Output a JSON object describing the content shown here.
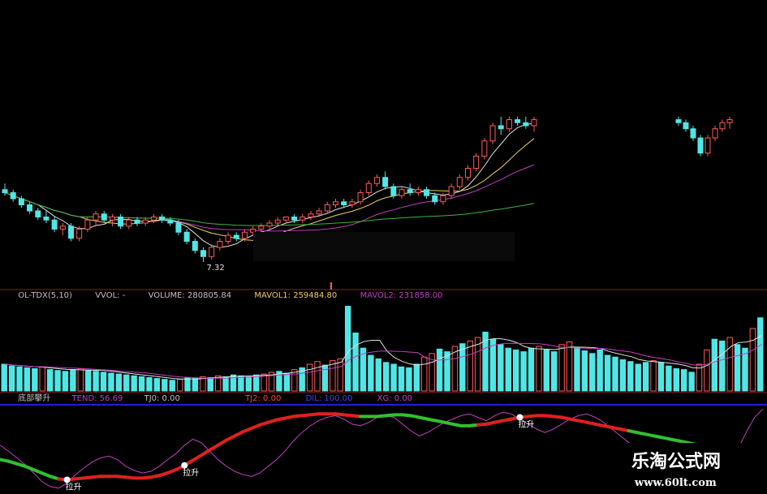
{
  "colors": {
    "background": "#000000",
    "up": "#ff5a5a",
    "down": "#50e6e6",
    "ma_white": "#e0e0e0",
    "ma_yellow": "#e6d25a",
    "ma_purple": "#c040c0",
    "ma_green": "#3cb43c",
    "divider": "#8c1e1e",
    "blue_line": "#2020d0",
    "rise": "#e02020",
    "fall": "#30c030",
    "label_gray": "#c0c0c0",
    "label_purple": "#c040c0",
    "label_red": "#ff4040",
    "label_blue": "#4040ff"
  },
  "chart_data": {
    "type": "candlestick",
    "price": {
      "min_label": "7.32",
      "ylim": [
        7.0,
        12.2
      ],
      "candles": [
        {
          "o": 9.7,
          "h": 9.9,
          "l": 9.5,
          "c": 9.6
        },
        {
          "o": 9.6,
          "h": 9.7,
          "l": 9.3,
          "c": 9.4
        },
        {
          "o": 9.4,
          "h": 9.5,
          "l": 9.1,
          "c": 9.2
        },
        {
          "o": 9.2,
          "h": 9.3,
          "l": 8.9,
          "c": 9.0
        },
        {
          "o": 9.0,
          "h": 9.1,
          "l": 8.7,
          "c": 8.8
        },
        {
          "o": 8.8,
          "h": 9.0,
          "l": 8.6,
          "c": 8.7
        },
        {
          "o": 8.7,
          "h": 8.8,
          "l": 8.3,
          "c": 8.4
        },
        {
          "o": 8.4,
          "h": 8.6,
          "l": 8.2,
          "c": 8.5
        },
        {
          "o": 8.5,
          "h": 8.6,
          "l": 8.0,
          "c": 8.1
        },
        {
          "o": 8.1,
          "h": 8.5,
          "l": 8.0,
          "c": 8.4
        },
        {
          "o": 8.4,
          "h": 8.8,
          "l": 8.3,
          "c": 8.7
        },
        {
          "o": 8.7,
          "h": 9.0,
          "l": 8.5,
          "c": 8.9
        },
        {
          "o": 8.9,
          "h": 9.0,
          "l": 8.6,
          "c": 8.7
        },
        {
          "o": 8.7,
          "h": 8.9,
          "l": 8.5,
          "c": 8.8
        },
        {
          "o": 8.8,
          "h": 8.9,
          "l": 8.4,
          "c": 8.5
        },
        {
          "o": 8.5,
          "h": 8.8,
          "l": 8.4,
          "c": 8.7
        },
        {
          "o": 8.7,
          "h": 8.8,
          "l": 8.5,
          "c": 8.6
        },
        {
          "o": 8.6,
          "h": 8.8,
          "l": 8.5,
          "c": 8.7
        },
        {
          "o": 8.7,
          "h": 8.9,
          "l": 8.6,
          "c": 8.8
        },
        {
          "o": 8.8,
          "h": 8.9,
          "l": 8.6,
          "c": 8.7
        },
        {
          "o": 8.7,
          "h": 8.8,
          "l": 8.5,
          "c": 8.6
        },
        {
          "o": 8.6,
          "h": 8.7,
          "l": 8.2,
          "c": 8.3
        },
        {
          "o": 8.3,
          "h": 8.4,
          "l": 7.9,
          "c": 8.0
        },
        {
          "o": 8.0,
          "h": 8.1,
          "l": 7.6,
          "c": 7.7
        },
        {
          "o": 7.7,
          "h": 7.8,
          "l": 7.32,
          "c": 7.5
        },
        {
          "o": 7.5,
          "h": 7.9,
          "l": 7.4,
          "c": 7.8
        },
        {
          "o": 7.8,
          "h": 8.1,
          "l": 7.7,
          "c": 8.0
        },
        {
          "o": 8.0,
          "h": 8.3,
          "l": 7.9,
          "c": 8.2
        },
        {
          "o": 8.2,
          "h": 8.3,
          "l": 8.0,
          "c": 8.1
        },
        {
          "o": 8.1,
          "h": 8.4,
          "l": 8.0,
          "c": 8.3
        },
        {
          "o": 8.3,
          "h": 8.5,
          "l": 8.2,
          "c": 8.4
        },
        {
          "o": 8.4,
          "h": 8.6,
          "l": 8.3,
          "c": 8.5
        },
        {
          "o": 8.5,
          "h": 8.7,
          "l": 8.4,
          "c": 8.6
        },
        {
          "o": 8.6,
          "h": 8.8,
          "l": 8.5,
          "c": 8.7
        },
        {
          "o": 8.7,
          "h": 8.8,
          "l": 8.6,
          "c": 8.8
        },
        {
          "o": 8.8,
          "h": 8.9,
          "l": 8.6,
          "c": 8.7
        },
        {
          "o": 8.7,
          "h": 8.9,
          "l": 8.6,
          "c": 8.8
        },
        {
          "o": 8.8,
          "h": 9.0,
          "l": 8.7,
          "c": 8.9
        },
        {
          "o": 8.9,
          "h": 9.1,
          "l": 8.8,
          "c": 9.0
        },
        {
          "o": 9.0,
          "h": 9.3,
          "l": 8.9,
          "c": 9.2
        },
        {
          "o": 9.2,
          "h": 9.4,
          "l": 9.1,
          "c": 9.3
        },
        {
          "o": 9.3,
          "h": 9.4,
          "l": 9.1,
          "c": 9.2
        },
        {
          "o": 9.2,
          "h": 9.4,
          "l": 9.1,
          "c": 9.3
        },
        {
          "o": 9.3,
          "h": 9.7,
          "l": 9.2,
          "c": 9.6
        },
        {
          "o": 9.6,
          "h": 10.0,
          "l": 9.5,
          "c": 9.9
        },
        {
          "o": 9.9,
          "h": 10.2,
          "l": 9.8,
          "c": 10.1
        },
        {
          "o": 10.1,
          "h": 10.3,
          "l": 9.7,
          "c": 9.8
        },
        {
          "o": 9.8,
          "h": 9.9,
          "l": 9.4,
          "c": 9.5
        },
        {
          "o": 9.5,
          "h": 9.8,
          "l": 9.4,
          "c": 9.7
        },
        {
          "o": 9.7,
          "h": 9.9,
          "l": 9.5,
          "c": 9.6
        },
        {
          "o": 9.6,
          "h": 9.8,
          "l": 9.5,
          "c": 9.7
        },
        {
          "o": 9.7,
          "h": 9.8,
          "l": 9.4,
          "c": 9.5
        },
        {
          "o": 9.5,
          "h": 9.6,
          "l": 9.2,
          "c": 9.3
        },
        {
          "o": 9.3,
          "h": 9.6,
          "l": 9.2,
          "c": 9.5
        },
        {
          "o": 9.5,
          "h": 9.9,
          "l": 9.4,
          "c": 9.8
        },
        {
          "o": 9.8,
          "h": 10.2,
          "l": 9.7,
          "c": 10.1
        },
        {
          "o": 10.1,
          "h": 10.5,
          "l": 10.0,
          "c": 10.4
        },
        {
          "o": 10.4,
          "h": 10.9,
          "l": 10.3,
          "c": 10.8
        },
        {
          "o": 10.8,
          "h": 11.4,
          "l": 10.7,
          "c": 11.3
        },
        {
          "o": 11.3,
          "h": 11.9,
          "l": 11.2,
          "c": 11.8
        },
        {
          "o": 11.8,
          "h": 12.1,
          "l": 11.5,
          "c": 11.7
        },
        {
          "o": 11.7,
          "h": 12.1,
          "l": 11.6,
          "c": 12.0
        },
        {
          "o": 12.0,
          "h": 12.1,
          "l": 11.8,
          "c": 11.9
        },
        {
          "o": 11.9,
          "h": 12.1,
          "l": 11.7,
          "c": 11.8
        },
        {
          "o": 11.8,
          "h": 12.1,
          "l": 11.6,
          "c": 12.0
        }
      ],
      "candles_right": [
        {
          "o": 12.0,
          "h": 12.1,
          "l": 11.8,
          "c": 11.9
        },
        {
          "o": 11.9,
          "h": 12.0,
          "l": 11.6,
          "c": 11.7
        },
        {
          "o": 11.7,
          "h": 11.8,
          "l": 11.3,
          "c": 11.4
        },
        {
          "o": 11.4,
          "h": 11.5,
          "l": 10.8,
          "c": 10.9
        },
        {
          "o": 10.9,
          "h": 11.5,
          "l": 10.8,
          "c": 11.4
        },
        {
          "o": 11.4,
          "h": 11.8,
          "l": 11.3,
          "c": 11.7
        },
        {
          "o": 11.7,
          "h": 12.0,
          "l": 11.6,
          "c": 11.9
        },
        {
          "o": 11.9,
          "h": 12.1,
          "l": 11.7,
          "c": 12.0
        }
      ]
    },
    "volume": {
      "header": [
        "OL-TDX(5,10)",
        "VVOL: -",
        "VOLUME: 280805.84",
        "MAVOL1: 259484.80",
        "MAVOL2: 231858.00"
      ],
      "values": [
        30,
        28,
        27,
        26,
        25,
        27,
        24,
        23,
        22,
        24,
        25,
        23,
        22,
        21,
        20,
        19,
        18,
        17,
        16,
        15,
        14,
        13,
        12,
        13,
        15,
        14,
        16,
        15,
        17,
        16,
        18,
        17,
        16,
        18,
        19,
        21,
        22,
        20,
        24,
        26,
        30,
        33,
        29,
        34,
        36,
        95,
        65,
        48,
        40,
        36,
        32,
        30,
        27,
        26,
        30,
        38,
        42,
        47,
        44,
        50,
        53,
        56,
        60,
        66,
        58,
        52,
        48,
        46,
        44,
        48,
        50,
        46,
        44,
        52,
        55,
        49,
        45,
        42,
        46,
        40,
        38,
        35,
        33,
        30,
        32,
        34,
        32,
        28,
        25,
        24,
        21,
        30,
        46,
        58,
        56,
        60,
        52,
        48,
        70,
        82
      ],
      "ylim": [
        0,
        100
      ]
    },
    "indicator": {
      "header_parts": [
        {
          "text": "底部攀升",
          "color": "label_gray"
        },
        {
          "text": "TEND: 56.69",
          "color": "label_purple"
        },
        {
          "text": "TJ0: 0.00",
          "color": "label_gray"
        },
        {
          "text": "TJ2: 0.00",
          "color": "label_red"
        },
        {
          "text": "DIL: 100.00",
          "color": "label_blue"
        },
        {
          "text": "XG: 0.00",
          "color": "label_purple"
        }
      ],
      "signal_label": "拉升",
      "tend": [
        55,
        48,
        40,
        32,
        22,
        12,
        6,
        4,
        10,
        20,
        28,
        35,
        40,
        42,
        38,
        30,
        25,
        22,
        24,
        30,
        38,
        45,
        55,
        62,
        58,
        48,
        38,
        30,
        24,
        20,
        18,
        22,
        30,
        38,
        48,
        60,
        70,
        78,
        84,
        88,
        90,
        86,
        80,
        78,
        82,
        88,
        90,
        88,
        80,
        72,
        66,
        70,
        76,
        82,
        86,
        90,
        92,
        88,
        84,
        90,
        94,
        92,
        86,
        80,
        74,
        70,
        74,
        80,
        86,
        90,
        92,
        88,
        82,
        74,
        66,
        58,
        52,
        46,
        40,
        34,
        28,
        22,
        16,
        12,
        10,
        14,
        22,
        34,
        50,
        70,
        88,
        98
      ],
      "trend_line": [
        38,
        36,
        33,
        30,
        26,
        22,
        18,
        15,
        14,
        15,
        16,
        17,
        18,
        18,
        18,
        17,
        16,
        16,
        17,
        19,
        22,
        26,
        31,
        37,
        43,
        49,
        55,
        61,
        66,
        71,
        75,
        79,
        82,
        85,
        87,
        89,
        90,
        91,
        92,
        92,
        92,
        91,
        90,
        89,
        89,
        89,
        90,
        91,
        91,
        90,
        88,
        86,
        84,
        82,
        80,
        78,
        78,
        79,
        80,
        82,
        84,
        86,
        88,
        89,
        90,
        90,
        89,
        88,
        86,
        84,
        82,
        80,
        78,
        76,
        74,
        72,
        70,
        68,
        66,
        64,
        62,
        60,
        58,
        56,
        54,
        52,
        50,
        48,
        46,
        44,
        42,
        40
      ],
      "trend_colors": "fffffffrrrrrrrrrrrrrrrrrrrrrrrrrrrrrrrrrrrrffffffffffffffrrrrrrrrrrrrrrrrrrfffffffffffffffffffffffffff",
      "ylim": [
        0,
        100
      ]
    }
  },
  "watermark": {
    "line1": "乐淘公式网",
    "line2": "www.60lt.com"
  }
}
